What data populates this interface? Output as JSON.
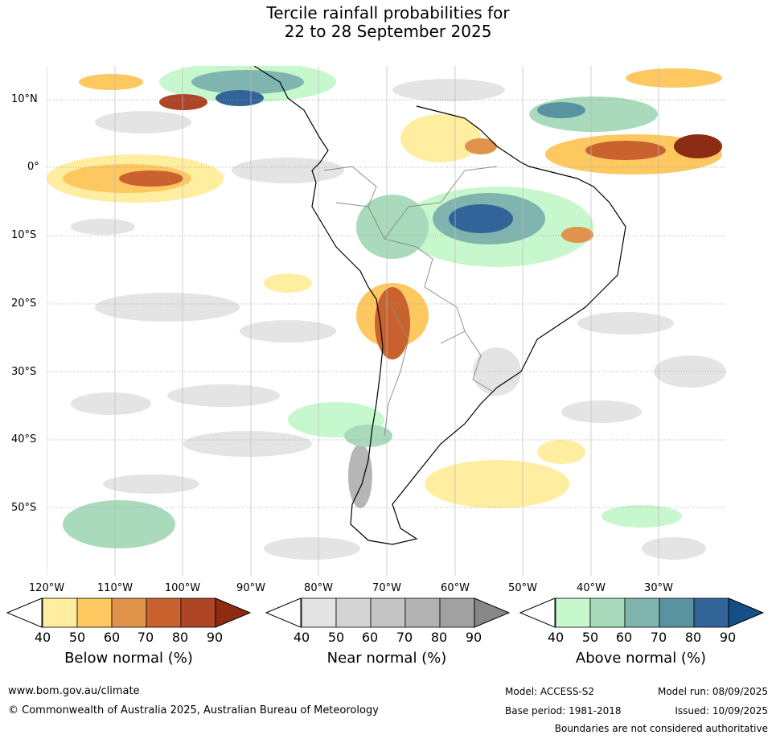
{
  "title_line1": "Tercile rainfall probabilities for",
  "title_line2": "22 to 28 September 2025",
  "map": {
    "lat_labels": [
      "10°N",
      "0°",
      "10°S",
      "20°S",
      "30°S",
      "40°S",
      "50°S"
    ],
    "lon_labels": [
      "120°W",
      "110°W",
      "100°W",
      "90°W",
      "80°W",
      "70°W",
      "60°W",
      "50°W",
      "40°W",
      "30°W"
    ]
  },
  "legends": [
    {
      "title": "Below normal (%)",
      "ticks": [
        "40",
        "50",
        "60",
        "70",
        "80",
        "90"
      ],
      "colors": [
        "#ffeda0",
        "#fec861",
        "#e0934a",
        "#c9622e",
        "#ad4526",
        "#8c2d13"
      ]
    },
    {
      "title": "Near normal (%)",
      "ticks": [
        "40",
        "50",
        "60",
        "70",
        "80",
        "90"
      ],
      "colors": [
        "#e3e3e3",
        "#d4d4d4",
        "#c4c4c4",
        "#b3b3b3",
        "#a1a1a1",
        "#878787"
      ]
    },
    {
      "title": "Above normal (%)",
      "ticks": [
        "40",
        "50",
        "60",
        "70",
        "80",
        "90"
      ],
      "colors": [
        "#c7f7cd",
        "#a8dabb",
        "#7fb5ae",
        "#5a93a0",
        "#32649a",
        "#154f85"
      ]
    }
  ],
  "footer": {
    "url": "www.bom.gov.au/climate",
    "copyright": "© Commonwealth of Australia 2025, Australian Bureau of Meteorology",
    "model": "Model: ACCESS-S2",
    "model_run": "Model run: 08/09/2025",
    "base_period": "Base period: 1981-2018",
    "issued": "Issued: 10/09/2025",
    "disclaimer": "Boundaries are not considered authoritative"
  }
}
